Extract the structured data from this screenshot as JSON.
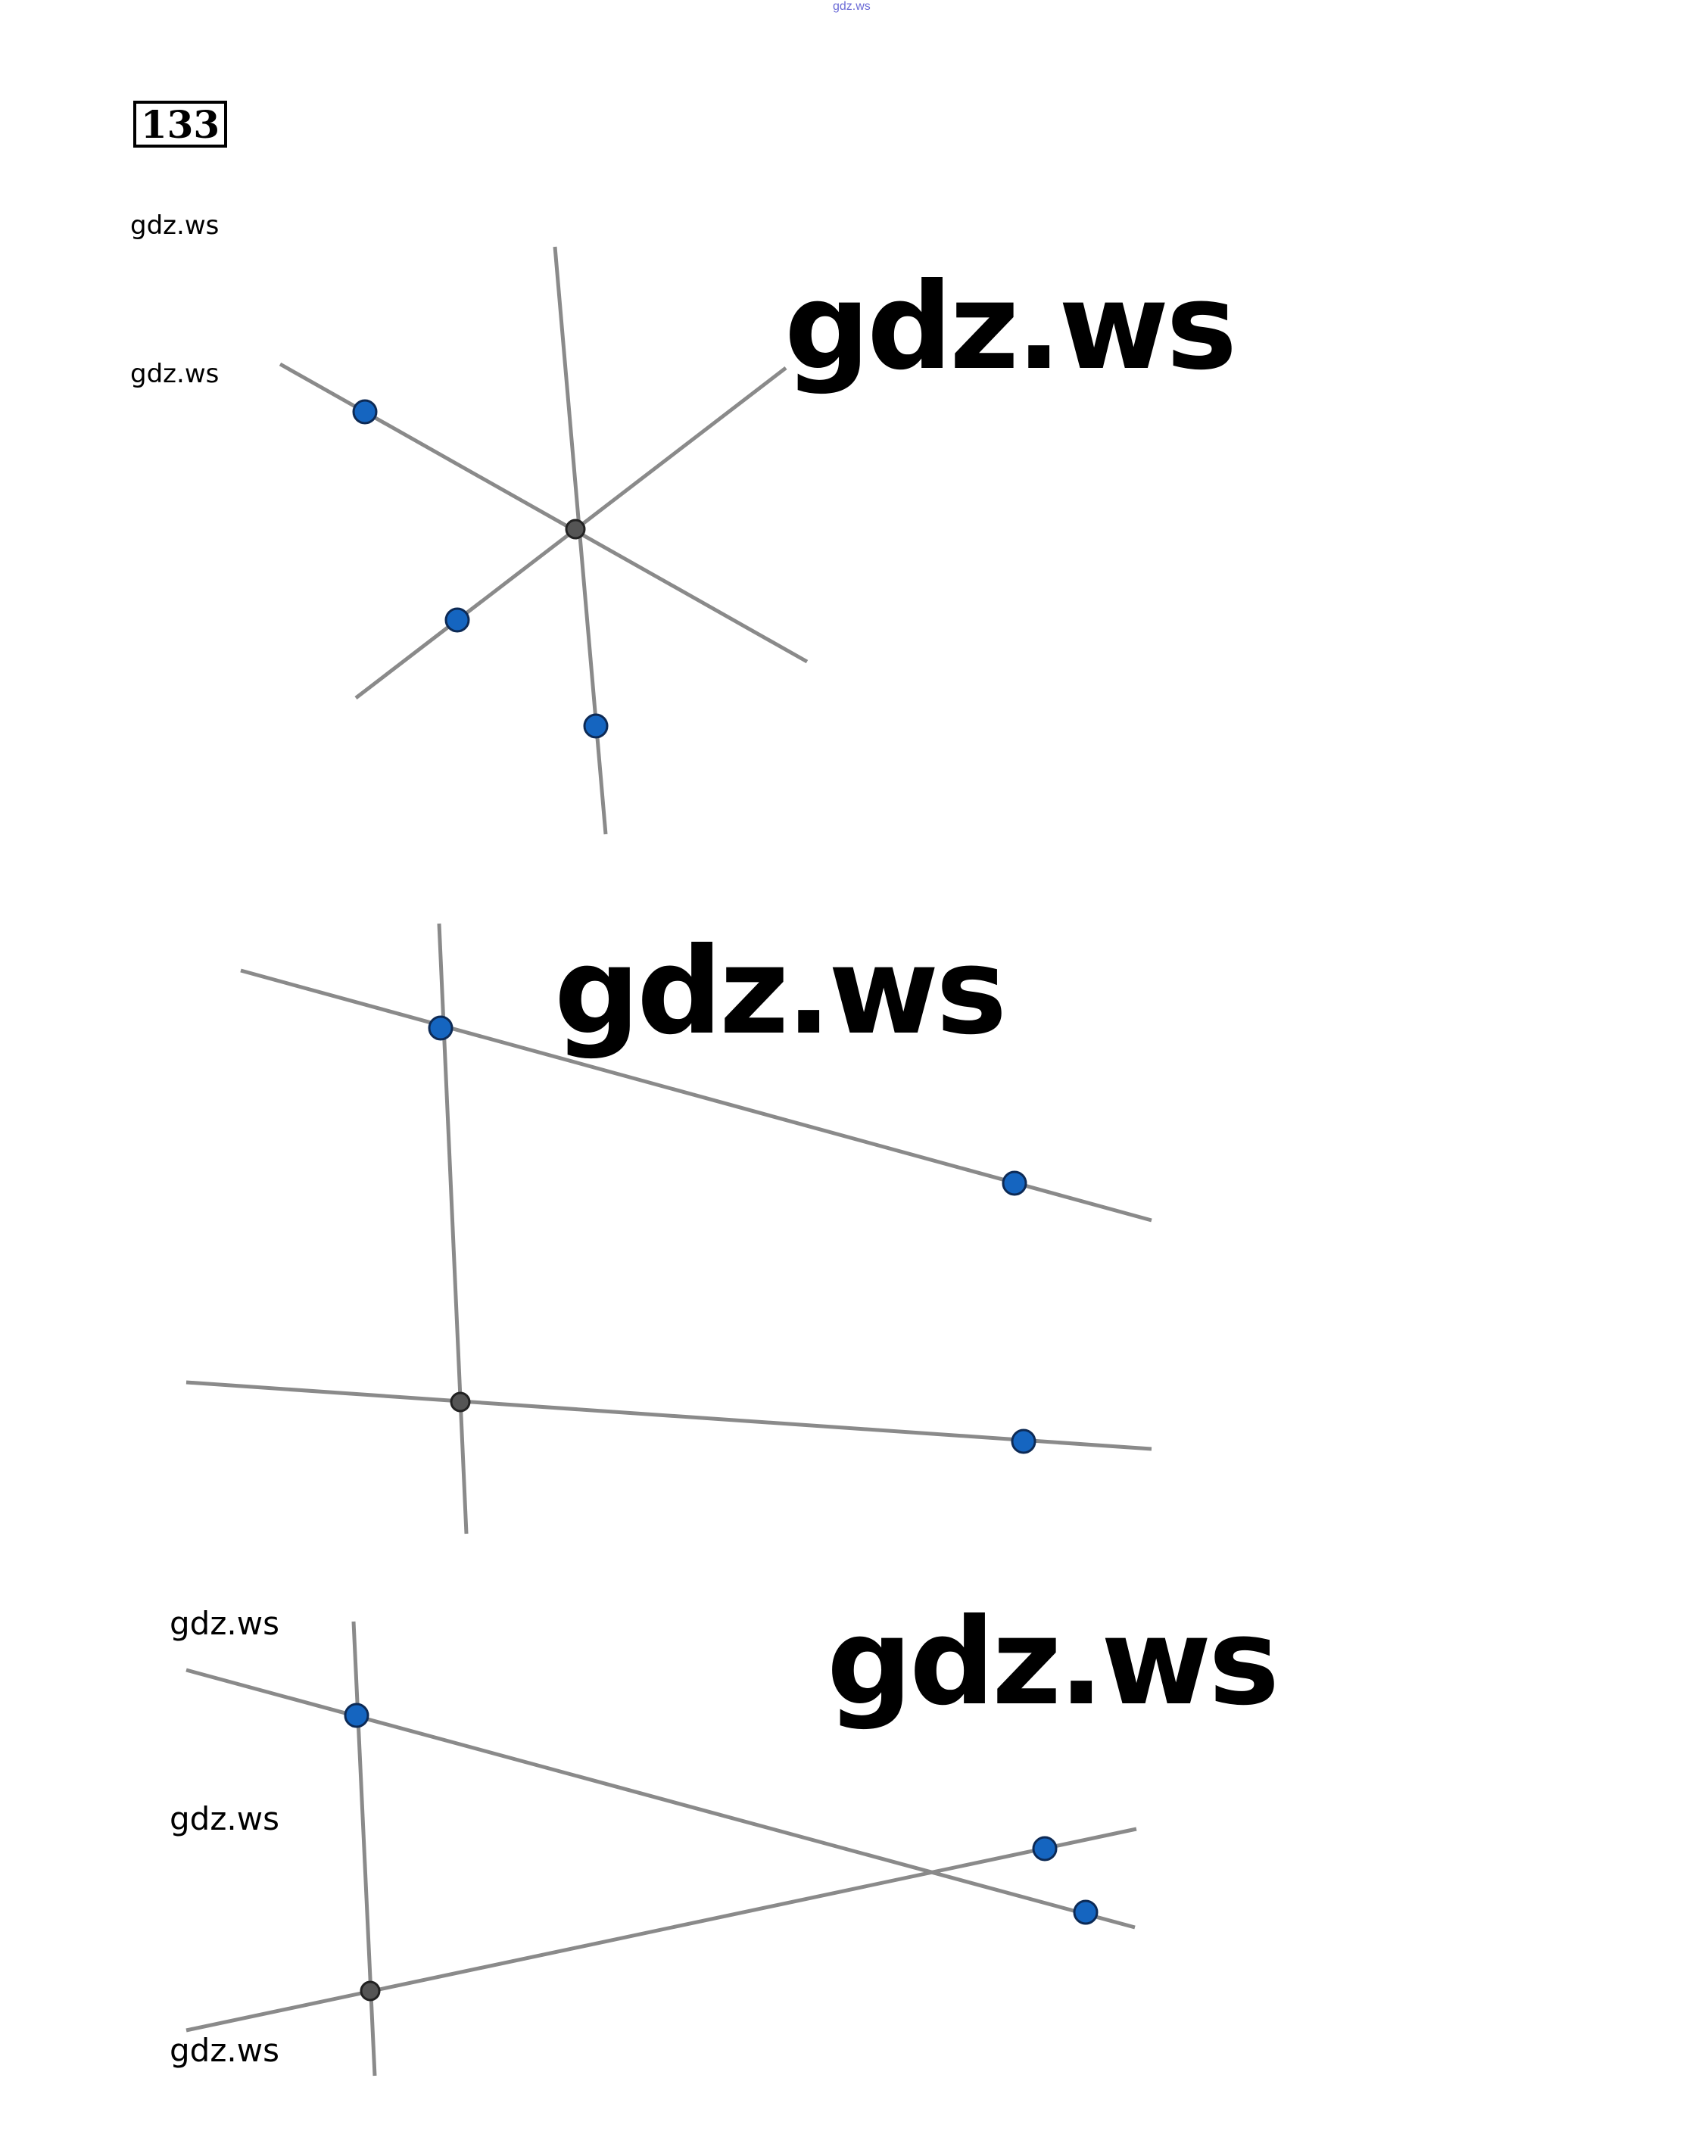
{
  "header": {
    "top_mark": "gdz.ws",
    "problem_number": "133"
  },
  "watermarks": {
    "w1": "gdz.ws",
    "w2": "gdz.ws",
    "w3": "gdz.ws",
    "w4": "gdz.ws",
    "w5": "gdz.ws",
    "w6": "gdz.ws",
    "w7": "gdz.ws",
    "w8": "gdz.ws",
    "w9": "gdz.ws"
  },
  "colors": {
    "line": "#8a8a8a",
    "point_fill": "#1565c0",
    "point_stroke": "#0d2a55",
    "intersection_fill": "#555555",
    "intersection_stroke": "#222222"
  }
}
